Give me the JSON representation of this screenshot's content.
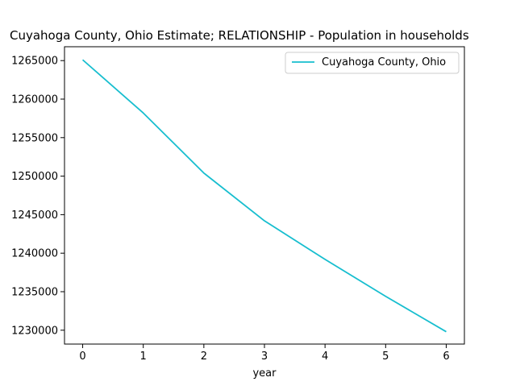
{
  "chart_data": {
    "type": "line",
    "title": "Cuyahoga County, Ohio Estimate; RELATIONSHIP - Population in households",
    "xlabel": "year",
    "ylabel": "",
    "x": [
      0,
      1,
      2,
      3,
      4,
      5,
      6
    ],
    "series": [
      {
        "name": "Cuyahoga County, Ohio",
        "color": "#17becf",
        "values": [
          1265100,
          1258200,
          1250400,
          1244200,
          1239200,
          1234400,
          1229800
        ]
      }
    ],
    "xlim": [
      -0.3,
      6.3
    ],
    "ylim": [
      1228200,
      1266800
    ],
    "xticks": [
      0,
      1,
      2,
      3,
      4,
      5,
      6
    ],
    "yticks": [
      1230000,
      1235000,
      1240000,
      1245000,
      1250000,
      1255000,
      1260000,
      1265000
    ],
    "xtick_labels": [
      "0",
      "1",
      "2",
      "3",
      "4",
      "5",
      "6"
    ],
    "ytick_labels": [
      "1230000",
      "1235000",
      "1240000",
      "1245000",
      "1250000",
      "1255000",
      "1260000",
      "1265000"
    ],
    "grid": false,
    "legend_position": "top-right"
  }
}
